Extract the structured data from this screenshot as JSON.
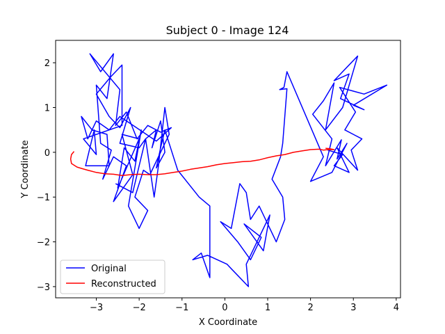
{
  "chart_data": {
    "type": "line",
    "title": "Subject 0 - Image 124",
    "xlabel": "X Coordinate",
    "ylabel": "Y Coordinate",
    "xlim": [
      -3.95,
      4.1
    ],
    "ylim": [
      -3.25,
      2.5
    ],
    "xticks": [
      -3,
      -2,
      -1,
      0,
      1,
      2,
      3,
      4
    ],
    "yticks": [
      -3,
      -2,
      -1,
      0,
      1,
      2
    ],
    "grid": false,
    "legend_position": "lower-left",
    "series": [
      {
        "name": "Original",
        "color": "#0000ff",
        "points": [
          [
            2.4,
            0.05
          ],
          [
            2.75,
            -0.05
          ],
          [
            2.55,
            -0.3
          ],
          [
            2.9,
            -0.45
          ],
          [
            2.62,
            0.1
          ],
          [
            3.1,
            -0.4
          ],
          [
            2.95,
            0.05
          ],
          [
            3.2,
            0.3
          ],
          [
            2.8,
            0.5
          ],
          [
            3.05,
            0.9
          ],
          [
            2.68,
            1.45
          ],
          [
            3.25,
            1.3
          ],
          [
            3.78,
            1.5
          ],
          [
            3.0,
            1.05
          ],
          [
            3.25,
            0.95
          ],
          [
            2.7,
            1.2
          ],
          [
            2.9,
            1.75
          ],
          [
            2.55,
            1.6
          ],
          [
            3.1,
            2.15
          ],
          [
            2.75,
            1.0
          ],
          [
            2.35,
            0.5
          ],
          [
            2.55,
            1.55
          ],
          [
            2.3,
            1.15
          ],
          [
            2.05,
            0.85
          ],
          [
            2.5,
            0.3
          ],
          [
            2.35,
            -0.3
          ],
          [
            2.72,
            0.28
          ],
          [
            2.62,
            -0.15
          ],
          [
            2.85,
            0.2
          ],
          [
            2.5,
            -0.45
          ],
          [
            2.0,
            -0.65
          ],
          [
            2.3,
            -0.1
          ],
          [
            1.45,
            1.8
          ],
          [
            1.38,
            1.45
          ],
          [
            1.28,
            1.4
          ],
          [
            1.45,
            1.42
          ],
          [
            1.35,
            0.2
          ],
          [
            1.3,
            -0.1
          ],
          [
            1.1,
            -0.6
          ],
          [
            1.35,
            -1.0
          ],
          [
            1.4,
            -1.5
          ],
          [
            1.2,
            -2.0
          ],
          [
            0.8,
            -1.2
          ],
          [
            0.6,
            -1.5
          ],
          [
            0.5,
            -0.9
          ],
          [
            0.35,
            -0.7
          ],
          [
            0.15,
            -1.7
          ],
          [
            -0.1,
            -1.55
          ],
          [
            0.3,
            -2.0
          ],
          [
            0.6,
            -2.4
          ],
          [
            0.85,
            -1.9
          ],
          [
            0.45,
            -1.6
          ],
          [
            0.9,
            -2.2
          ],
          [
            1.05,
            -1.4
          ],
          [
            0.5,
            -2.5
          ],
          [
            0.55,
            -3.0
          ],
          [
            0.15,
            -2.6
          ],
          [
            0.05,
            -2.5
          ],
          [
            -0.4,
            -2.3
          ],
          [
            -0.75,
            -2.4
          ],
          [
            -0.55,
            -2.25
          ],
          [
            -0.35,
            -2.8
          ],
          [
            -0.35,
            -1.2
          ],
          [
            -0.6,
            -1.0
          ],
          [
            -1.1,
            -0.4
          ],
          [
            -1.4,
            0.5
          ],
          [
            -1.5,
            0.1
          ],
          [
            -1.6,
            -0.35
          ],
          [
            -1.4,
            0.0
          ],
          [
            -1.5,
            0.7
          ],
          [
            -1.7,
            0.1
          ],
          [
            -1.6,
            0.5
          ],
          [
            -1.85,
            0.3
          ],
          [
            -1.65,
            -1.0
          ],
          [
            -1.55,
            -0.3
          ],
          [
            -1.4,
            1.0
          ],
          [
            -1.3,
            0.4
          ],
          [
            -1.75,
            -0.5
          ],
          [
            -1.9,
            -0.4
          ],
          [
            -2.1,
            -1.0
          ],
          [
            -1.8,
            -1.3
          ],
          [
            -2.0,
            -1.7
          ],
          [
            -2.25,
            -1.2
          ],
          [
            -1.95,
            0.5
          ],
          [
            -2.1,
            -0.2
          ],
          [
            -2.35,
            0.1
          ],
          [
            -2.5,
            -0.8
          ],
          [
            -2.0,
            0.3
          ],
          [
            -2.4,
            0.4
          ],
          [
            -2.15,
            -0.5
          ],
          [
            -2.6,
            -1.1
          ],
          [
            -2.3,
            -0.3
          ],
          [
            -2.6,
            -0.1
          ],
          [
            -2.85,
            -0.6
          ],
          [
            -2.65,
            0.05
          ],
          [
            -2.9,
            0.2
          ],
          [
            -3.0,
            1.5
          ],
          [
            -2.75,
            1.2
          ],
          [
            -2.6,
            2.2
          ],
          [
            -2.9,
            1.8
          ],
          [
            -3.15,
            2.2
          ],
          [
            -2.45,
            1.4
          ],
          [
            -2.55,
            0.6
          ],
          [
            -2.3,
            0.9
          ],
          [
            -2.05,
            0.3
          ],
          [
            -1.8,
            0.6
          ],
          [
            -1.5,
            0.45
          ],
          [
            -1.25,
            0.55
          ],
          [
            -1.6,
            0.25
          ],
          [
            -2.45,
            0.8
          ],
          [
            -2.7,
            0.5
          ],
          [
            -3.0,
            0.7
          ],
          [
            -3.2,
            0.3
          ],
          [
            -3.35,
            0.8
          ],
          [
            -3.1,
            0.5
          ],
          [
            -2.75,
            0.4
          ],
          [
            -2.7,
            -0.3
          ],
          [
            -3.25,
            -0.3
          ],
          [
            -3.05,
            0.5
          ],
          [
            -3.0,
            -0.05
          ],
          [
            -3.3,
            0.3
          ],
          [
            -2.4,
            0.6
          ],
          [
            -2.4,
            1.95
          ],
          [
            -2.65,
            1.7
          ],
          [
            -3.0,
            1.3
          ],
          [
            -2.7,
            0.8
          ],
          [
            -2.45,
            0.55
          ],
          [
            -2.2,
            1.0
          ],
          [
            -2.45,
            0.2
          ],
          [
            -2.0,
            0.1
          ],
          [
            -1.85,
            0.3
          ],
          [
            -2.15,
            -0.9
          ],
          [
            -2.55,
            -0.7
          ]
        ]
      },
      {
        "name": "Reconstructed",
        "color": "#ff0000",
        "points": [
          [
            -3.52,
            0.02
          ],
          [
            -3.58,
            -0.05
          ],
          [
            -3.6,
            -0.15
          ],
          [
            -3.58,
            -0.25
          ],
          [
            -3.45,
            -0.33
          ],
          [
            -3.35,
            -0.36
          ],
          [
            -3.2,
            -0.4
          ],
          [
            -3.0,
            -0.45
          ],
          [
            -2.8,
            -0.48
          ],
          [
            -2.6,
            -0.49
          ],
          [
            -2.4,
            -0.52
          ],
          [
            -2.2,
            -0.5
          ],
          [
            -2.0,
            -0.49
          ],
          [
            -1.8,
            -0.5
          ],
          [
            -1.6,
            -0.5
          ],
          [
            -1.4,
            -0.48
          ],
          [
            -1.2,
            -0.45
          ],
          [
            -1.0,
            -0.42
          ],
          [
            -0.8,
            -0.38
          ],
          [
            -0.6,
            -0.35
          ],
          [
            -0.4,
            -0.32
          ],
          [
            -0.2,
            -0.28
          ],
          [
            0.0,
            -0.25
          ],
          [
            0.2,
            -0.23
          ],
          [
            0.4,
            -0.21
          ],
          [
            0.6,
            -0.2
          ],
          [
            0.8,
            -0.17
          ],
          [
            1.0,
            -0.12
          ],
          [
            1.2,
            -0.08
          ],
          [
            1.4,
            -0.05
          ],
          [
            1.6,
            0.0
          ],
          [
            1.8,
            0.03
          ],
          [
            2.0,
            0.06
          ],
          [
            2.2,
            0.07
          ],
          [
            2.3,
            0.05
          ],
          [
            2.4,
            0.06
          ],
          [
            2.55,
            0.06
          ],
          [
            2.45,
            0.08
          ],
          [
            2.35,
            0.09
          ]
        ]
      }
    ]
  }
}
